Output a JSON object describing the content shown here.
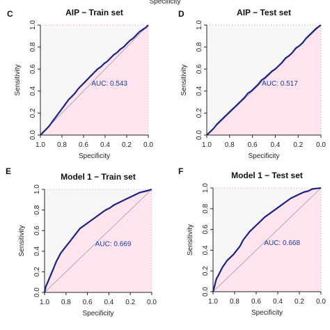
{
  "top_fragment": "Specificity",
  "chart_data": [
    {
      "type": "line",
      "panel": "C",
      "title": "AIP − Train set",
      "xlabel": "Specificity",
      "ylabel": "Sensitivity",
      "xlim": [
        1.0,
        0.0
      ],
      "ylim": [
        0.0,
        1.0
      ],
      "x_ticks": [
        "1.0",
        "0.8",
        "0.6",
        "0.4",
        "0.2",
        "0.0"
      ],
      "y_ticks": [
        "0.0",
        "0.2",
        "0.4",
        "0.6",
        "0.8",
        "1.0"
      ],
      "auc_label": "AUC: 0.543",
      "x": [
        1.0,
        0.98,
        0.95,
        0.92,
        0.89,
        0.86,
        0.83,
        0.8,
        0.77,
        0.74,
        0.71,
        0.68,
        0.65,
        0.62,
        0.59,
        0.56,
        0.53,
        0.5,
        0.47,
        0.44,
        0.41,
        0.38,
        0.35,
        0.32,
        0.29,
        0.26,
        0.23,
        0.2,
        0.17,
        0.14,
        0.11,
        0.08,
        0.05,
        0.02,
        0.0
      ],
      "y": [
        0.0,
        0.02,
        0.05,
        0.08,
        0.12,
        0.16,
        0.2,
        0.24,
        0.28,
        0.32,
        0.35,
        0.38,
        0.42,
        0.45,
        0.48,
        0.51,
        0.54,
        0.57,
        0.6,
        0.62,
        0.65,
        0.67,
        0.7,
        0.73,
        0.75,
        0.78,
        0.8,
        0.83,
        0.86,
        0.88,
        0.91,
        0.94,
        0.96,
        0.98,
        1.0
      ]
    },
    {
      "type": "line",
      "panel": "D",
      "title": "AIP − Test set",
      "xlabel": "Specificity",
      "ylabel": "Sensitivity",
      "xlim": [
        1.0,
        0.0
      ],
      "ylim": [
        0.0,
        1.0
      ],
      "x_ticks": [
        "1.0",
        "0.8",
        "0.6",
        "0.4",
        "0.2",
        "0.0"
      ],
      "y_ticks": [
        "0.0",
        "0.2",
        "0.4",
        "0.6",
        "0.8",
        "1.0"
      ],
      "auc_label": "AUC: 0.517",
      "x": [
        1.0,
        0.97,
        0.94,
        0.91,
        0.88,
        0.85,
        0.82,
        0.79,
        0.76,
        0.73,
        0.7,
        0.67,
        0.64,
        0.61,
        0.58,
        0.55,
        0.52,
        0.49,
        0.46,
        0.43,
        0.4,
        0.37,
        0.34,
        0.31,
        0.28,
        0.25,
        0.22,
        0.19,
        0.16,
        0.13,
        0.1,
        0.07,
        0.04,
        0.0
      ],
      "y": [
        0.0,
        0.03,
        0.06,
        0.1,
        0.13,
        0.16,
        0.19,
        0.22,
        0.25,
        0.28,
        0.31,
        0.34,
        0.38,
        0.4,
        0.43,
        0.46,
        0.5,
        0.52,
        0.55,
        0.58,
        0.6,
        0.63,
        0.66,
        0.7,
        0.72,
        0.75,
        0.79,
        0.81,
        0.84,
        0.88,
        0.91,
        0.94,
        0.97,
        1.0
      ]
    },
    {
      "type": "line",
      "panel": "E",
      "title": "Model 1 − Train set",
      "xlabel": "Specificity",
      "ylabel": "Sensitivity",
      "xlim": [
        1.0,
        0.0
      ],
      "ylim": [
        0.0,
        1.0
      ],
      "x_ticks": [
        "1.0",
        "0.8",
        "0.6",
        "0.4",
        "0.2",
        "0.0"
      ],
      "y_ticks": [
        "0.0",
        "0.2",
        "0.4",
        "0.6",
        "0.8",
        "1.0"
      ],
      "auc_label": "AUC: 0.669",
      "x": [
        1.0,
        0.99,
        0.97,
        0.95,
        0.93,
        0.91,
        0.89,
        0.87,
        0.85,
        0.82,
        0.79,
        0.76,
        0.73,
        0.7,
        0.67,
        0.63,
        0.59,
        0.55,
        0.51,
        0.47,
        0.43,
        0.39,
        0.35,
        0.31,
        0.27,
        0.23,
        0.19,
        0.15,
        0.11,
        0.07,
        0.03,
        0.0
      ],
      "y": [
        0.0,
        0.05,
        0.1,
        0.15,
        0.2,
        0.25,
        0.3,
        0.34,
        0.38,
        0.42,
        0.46,
        0.5,
        0.54,
        0.58,
        0.62,
        0.65,
        0.68,
        0.71,
        0.74,
        0.77,
        0.8,
        0.82,
        0.85,
        0.87,
        0.89,
        0.91,
        0.93,
        0.95,
        0.97,
        0.98,
        0.99,
        1.0
      ]
    },
    {
      "type": "line",
      "panel": "F",
      "title": "Model 1 − Test set",
      "xlabel": "Specificity",
      "ylabel": "Sensitivity",
      "xlim": [
        1.0,
        0.0
      ],
      "ylim": [
        0.0,
        1.0
      ],
      "x_ticks": [
        "1.0",
        "0.8",
        "0.6",
        "0.4",
        "0.2",
        "0.0"
      ],
      "y_ticks": [
        "0.0",
        "0.2",
        "0.4",
        "0.6",
        "0.8",
        "1.0"
      ],
      "auc_label": "AUC: 0.668",
      "x": [
        1.0,
        0.99,
        0.98,
        0.97,
        0.95,
        0.93,
        0.91,
        0.89,
        0.87,
        0.84,
        0.81,
        0.78,
        0.75,
        0.72,
        0.69,
        0.66,
        0.63,
        0.6,
        0.56,
        0.52,
        0.48,
        0.44,
        0.4,
        0.36,
        0.32,
        0.28,
        0.24,
        0.2,
        0.16,
        0.12,
        0.08,
        0.04,
        0.0
      ],
      "y": [
        0.0,
        0.04,
        0.08,
        0.12,
        0.16,
        0.2,
        0.24,
        0.27,
        0.3,
        0.33,
        0.36,
        0.4,
        0.44,
        0.5,
        0.54,
        0.58,
        0.61,
        0.64,
        0.68,
        0.72,
        0.75,
        0.78,
        0.81,
        0.84,
        0.87,
        0.9,
        0.92,
        0.94,
        0.96,
        0.97,
        0.99,
        0.995,
        1.0
      ]
    }
  ],
  "colors": {
    "roc_line": "#1a237e",
    "auc_text": "#1a3aa0",
    "fill_under": "#fde4ee",
    "fill_above": "#f7f7f7",
    "diagonal": "#9a9aa6",
    "axis": "#222222",
    "dot_border": "#d2a0a0"
  }
}
